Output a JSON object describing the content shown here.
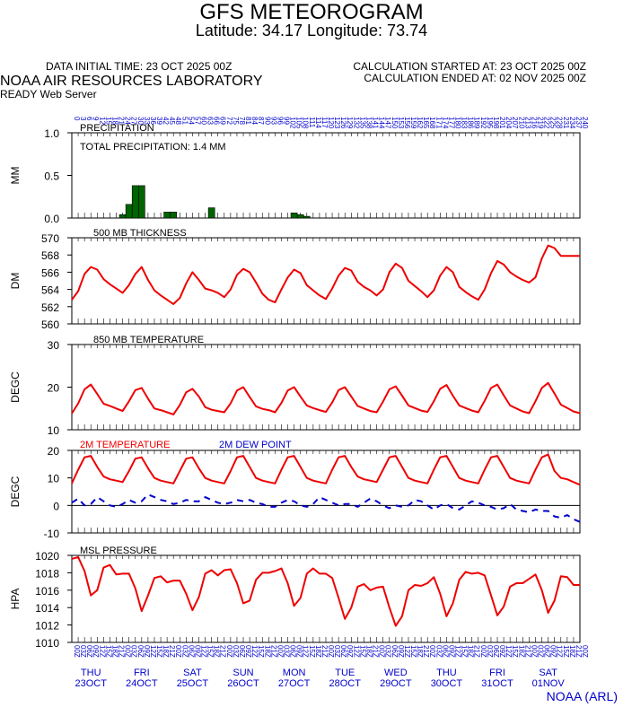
{
  "header": {
    "title": "GFS METEOROGRAM",
    "subtitle": "Latitude: 34.17 Longitude:  73.74",
    "initial_time": "DATA INITIAL TIME: 23 OCT 2025 00Z",
    "calc_started": "CALCULATION STARTED AT: 23 OCT 2025 00Z",
    "calc_ended": "CALCULATION ENDED AT: 02 NOV 2025 00Z",
    "lab": "NOAA AIR RESOURCES LABORATORY",
    "server": "READY Web Server",
    "credit": "NOAA (ARL)"
  },
  "colors": {
    "red": "#ee0000",
    "blue": "#0000cc",
    "green": "#006400",
    "grid": "#000000"
  },
  "time_axis": {
    "forecast_hours": [
      0,
      240
    ],
    "hour_step": 3,
    "top_labels": [
      "0",
      "3",
      "6",
      "9",
      "12",
      "15",
      "18",
      "21",
      "24",
      "27",
      "30",
      "33",
      "36",
      "39",
      "42",
      "45",
      "48",
      "51",
      "54",
      "57",
      "60",
      "63",
      "66",
      "69",
      "72",
      "75",
      "78",
      "81",
      "84",
      "87",
      "90",
      "93",
      "96",
      "99",
      "102",
      "105",
      "108",
      "111",
      "114",
      "117",
      "120",
      "123",
      "126",
      "129",
      "132",
      "135",
      "138",
      "141",
      "144",
      "147",
      "150",
      "153",
      "156",
      "159",
      "162",
      "165",
      "168",
      "171",
      "174",
      "177",
      "180",
      "183",
      "186",
      "189",
      "192",
      "195",
      "198",
      "201",
      "204",
      "207",
      "210",
      "213",
      "216",
      "219",
      "222",
      "225",
      "228",
      "231",
      "234",
      "237",
      "240"
    ],
    "bottom_labels": [
      "00Z",
      "03Z",
      "06Z",
      "09Z",
      "12Z",
      "15Z",
      "18Z",
      "21Z",
      "00Z",
      "03Z",
      "06Z",
      "09Z",
      "12Z",
      "15Z",
      "18Z",
      "21Z",
      "00Z",
      "03Z",
      "06Z",
      "09Z",
      "12Z",
      "15Z",
      "18Z",
      "21Z",
      "00Z",
      "03Z",
      "06Z",
      "09Z",
      "12Z",
      "15Z",
      "18Z",
      "21Z",
      "00Z",
      "03Z",
      "06Z",
      "09Z",
      "12Z",
      "15Z",
      "18Z",
      "21Z",
      "00Z",
      "03Z",
      "06Z",
      "09Z",
      "12Z",
      "15Z",
      "18Z",
      "21Z",
      "00Z",
      "03Z",
      "06Z",
      "09Z",
      "12Z",
      "15Z",
      "18Z",
      "21Z",
      "00Z",
      "03Z",
      "06Z",
      "09Z",
      "12Z",
      "15Z",
      "18Z",
      "21Z",
      "00Z",
      "03Z",
      "06Z",
      "09Z",
      "12Z",
      "15Z",
      "18Z",
      "21Z",
      "00Z",
      "03Z",
      "06Z",
      "09Z",
      "12Z",
      "15Z",
      "18Z",
      "21Z",
      "00Z"
    ],
    "days": [
      {
        "dow": "THU",
        "date": "23OCT"
      },
      {
        "dow": "FRI",
        "date": "24OCT"
      },
      {
        "dow": "SAT",
        "date": "25OCT"
      },
      {
        "dow": "SUN",
        "date": "26OCT"
      },
      {
        "dow": "MON",
        "date": "27OCT"
      },
      {
        "dow": "TUE",
        "date": "28OCT"
      },
      {
        "dow": "WED",
        "date": "29OCT"
      },
      {
        "dow": "THU",
        "date": "30OCT"
      },
      {
        "dow": "FRI",
        "date": "31OCT"
      },
      {
        "dow": "SAT",
        "date": "01NOV"
      }
    ]
  },
  "chart_data": [
    {
      "type": "bar",
      "title": "PRECIPITATION",
      "annotation": "TOTAL PRECIPITATION:   1.4 MM",
      "ylabel": "MM",
      "ylim": [
        0,
        1.0
      ],
      "yticks": [
        "0.0",
        "0.5",
        "1.0"
      ],
      "bars": [
        {
          "hour": 24,
          "value": 0.04
        },
        {
          "hour": 27,
          "value": 0.16
        },
        {
          "hour": 30,
          "value": 0.38
        },
        {
          "hour": 33,
          "value": 0.38
        },
        {
          "hour": 45,
          "value": 0.07
        },
        {
          "hour": 48,
          "value": 0.07
        },
        {
          "hour": 66,
          "value": 0.12
        },
        {
          "hour": 105,
          "value": 0.06
        },
        {
          "hour": 108,
          "value": 0.04
        },
        {
          "hour": 111,
          "value": 0.02
        }
      ]
    },
    {
      "type": "line",
      "title": "500 MB  THICKNESS",
      "ylabel": "DM",
      "ylim": [
        560,
        570
      ],
      "yticks": [
        "560",
        "562",
        "564",
        "566",
        "568",
        "570"
      ],
      "series": [
        {
          "color": "#ee0000",
          "dash": false,
          "values": [
            562.8,
            563.8,
            565.8,
            566.6,
            566.3,
            565.2,
            564.6,
            564.1,
            563.6,
            564.5,
            565.8,
            566.6,
            565.1,
            563.9,
            563.3,
            562.8,
            562.3,
            563.0,
            564.7,
            566.0,
            565.1,
            564.1,
            563.9,
            563.6,
            563.1,
            564.0,
            565.7,
            566.4,
            566.0,
            564.8,
            563.5,
            562.8,
            562.5,
            564.0,
            565.4,
            566.3,
            565.9,
            564.5,
            563.9,
            563.3,
            562.9,
            564.1,
            565.6,
            566.5,
            566.2,
            564.9,
            564.3,
            563.9,
            563.3,
            564.0,
            566.0,
            567.0,
            566.5,
            565.0,
            564.4,
            563.8,
            563.1,
            563.9,
            565.6,
            566.6,
            566.0,
            564.3,
            563.7,
            563.2,
            562.8,
            564.0,
            565.9,
            567.3,
            566.9,
            566.0,
            565.5,
            565.1,
            564.8,
            565.4,
            567.6,
            569.1,
            568.8,
            567.9,
            567.9,
            567.9,
            567.9
          ]
        }
      ]
    },
    {
      "type": "line",
      "title": "850 MB  TEMPERATURE",
      "ylabel": "DEGC",
      "ylim": [
        10,
        30
      ],
      "yticks": [
        "10",
        "20",
        "30"
      ],
      "series": [
        {
          "color": "#ee0000",
          "dash": false,
          "values": [
            13.8,
            16.2,
            19.5,
            20.6,
            18.4,
            16.1,
            15.6,
            15.0,
            14.4,
            16.7,
            19.3,
            19.8,
            17.3,
            15.0,
            14.6,
            14.1,
            13.6,
            15.8,
            18.8,
            19.6,
            17.8,
            15.3,
            14.7,
            14.4,
            14.1,
            16.2,
            19.2,
            20.0,
            17.7,
            15.5,
            14.9,
            14.6,
            14.1,
            16.3,
            19.2,
            20.0,
            17.8,
            15.7,
            15.1,
            14.6,
            14.2,
            16.4,
            19.3,
            20.0,
            17.8,
            15.6,
            15.0,
            14.4,
            14.1,
            16.6,
            19.5,
            20.2,
            18.0,
            15.7,
            15.1,
            14.5,
            14.2,
            16.7,
            19.6,
            20.5,
            18.0,
            15.7,
            15.1,
            14.5,
            14.1,
            16.8,
            19.8,
            20.6,
            18.1,
            15.7,
            15.0,
            14.3,
            13.9,
            16.7,
            19.8,
            21.0,
            18.5,
            15.9,
            15.1,
            14.3,
            13.9
          ]
        }
      ]
    },
    {
      "type": "line",
      "title": "2M TEMPERATURE",
      "title2": "2M  DEW POINT",
      "ylabel": "DEGC",
      "ylim": [
        -10,
        20
      ],
      "yticks": [
        "-10",
        "0",
        "10",
        "20"
      ],
      "series": [
        {
          "color": "#ee0000",
          "dash": false,
          "values": [
            8,
            13,
            17.5,
            18,
            14,
            10.5,
            9.5,
            9,
            8.5,
            12.5,
            17,
            17.5,
            13.5,
            10,
            9,
            8.5,
            8,
            12.5,
            17,
            17.5,
            13.5,
            10,
            9,
            8.5,
            8,
            12.5,
            17.5,
            18,
            14,
            10,
            9,
            8.5,
            8,
            13,
            17.5,
            18,
            14,
            10,
            9,
            8.5,
            8,
            13,
            17.5,
            18,
            14,
            10.5,
            9.5,
            9,
            8.5,
            13,
            17.5,
            18,
            14,
            10,
            9,
            8.5,
            8,
            13,
            17.5,
            18,
            14,
            10,
            9,
            8.5,
            8,
            13,
            17.5,
            18,
            14,
            10,
            9,
            8.5,
            8,
            13,
            17.5,
            18.5,
            12.5,
            10,
            9.5,
            8.5,
            7.5
          ]
        },
        {
          "color": "#0000cc",
          "dash": true,
          "values": [
            1,
            2.5,
            0,
            0.5,
            3,
            1.5,
            0,
            -0.5,
            0.5,
            2,
            1,
            1.5,
            4,
            3,
            2,
            1.5,
            0.5,
            1,
            2,
            1.5,
            1.5,
            3,
            2,
            1,
            0.5,
            1,
            2,
            1.5,
            2,
            1,
            0.5,
            -0.5,
            -0.5,
            1,
            2,
            1.5,
            0,
            -0.5,
            0.5,
            3,
            2,
            1,
            0,
            0.5,
            0.5,
            -0.5,
            1,
            2.5,
            1.5,
            0,
            -1,
            0,
            -0.5,
            0,
            2,
            1.5,
            0,
            -1.5,
            0,
            0.5,
            -1,
            -1.5,
            0,
            1.5,
            1,
            0,
            -0.5,
            -1.5,
            -1,
            0.5,
            -1.5,
            -2,
            -2.5,
            -1.5,
            -2,
            -2,
            -4,
            -4.5,
            -3.5,
            -5,
            -6
          ]
        }
      ]
    },
    {
      "type": "line",
      "title": "MSL PRESSURE",
      "ylabel": "HPA",
      "ylim": [
        1010,
        1020
      ],
      "yticks": [
        "1010",
        "1012",
        "1014",
        "1016",
        "1018",
        "1020"
      ],
      "series": [
        {
          "color": "#ee0000",
          "dash": false,
          "values": [
            1019.6,
            1019.8,
            1018.2,
            1015.4,
            1016,
            1018.6,
            1018.9,
            1017.8,
            1017.9,
            1017.9,
            1016.2,
            1013.6,
            1015.4,
            1017.4,
            1017.6,
            1016.9,
            1017.1,
            1017.1,
            1015.6,
            1013.7,
            1015.2,
            1017.9,
            1018.3,
            1017.7,
            1018.3,
            1018.4,
            1016.8,
            1014.5,
            1014.8,
            1017.2,
            1018,
            1018,
            1018.2,
            1018.5,
            1016.8,
            1014.2,
            1015.1,
            1017.9,
            1018.5,
            1017.9,
            1017.9,
            1017.4,
            1015.1,
            1012.7,
            1014,
            1016.4,
            1016.7,
            1016,
            1016.3,
            1016.4,
            1014,
            1011.9,
            1013,
            1016,
            1016.6,
            1016.5,
            1016.8,
            1017.5,
            1015.6,
            1013,
            1014.5,
            1017.2,
            1018.1,
            1017.9,
            1018,
            1017.7,
            1015.4,
            1013.1,
            1014.1,
            1016.4,
            1016.8,
            1016.8,
            1017.3,
            1017.8,
            1016,
            1013.4,
            1014.8,
            1017.6,
            1017.5,
            1016.6,
            1016.6
          ]
        }
      ]
    }
  ]
}
